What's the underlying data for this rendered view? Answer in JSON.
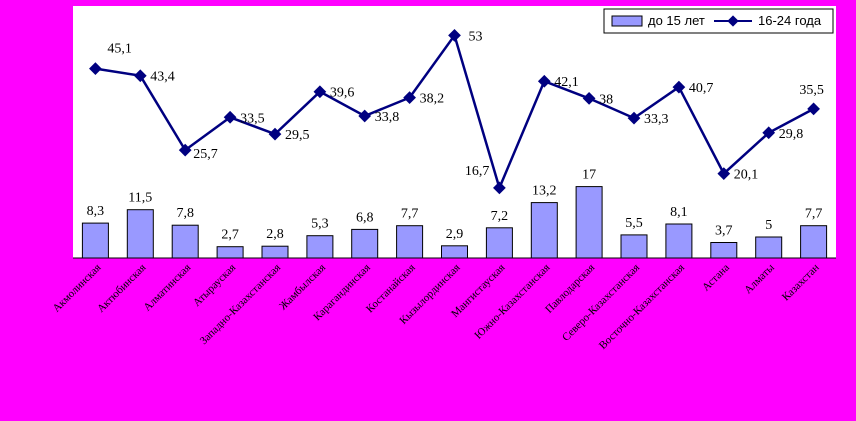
{
  "colors": {
    "background": "#ff00ff",
    "plot_area": "#ffffff",
    "bar_fill": "#9999ff",
    "bar_stroke": "#000000",
    "line": "#000080",
    "marker": "#000080"
  },
  "chart_data": {
    "type": "bar",
    "title": "",
    "xlabel": "",
    "ylabel": "",
    "ylim": [
      0,
      60
    ],
    "grid": false,
    "legend_position": "top-right",
    "categories": [
      "Акмолинская",
      "Актюбинская",
      "Алматинская",
      "Атырауская",
      "Западно-Казахстанская",
      "Жамбылская",
      "Карагандинская",
      "Костанайская",
      "Кызылординская",
      "Мангистауская",
      "Южно-Казахстанская",
      "Павлодарская",
      "Северо-Казахстанская",
      "Восточно-Казахстанская",
      "Астана",
      "Алматы",
      "Казахстан"
    ],
    "series": [
      {
        "name": "до 15 лет",
        "type": "bar",
        "values": [
          8.3,
          11.5,
          7.8,
          2.7,
          2.8,
          5.3,
          6.8,
          7.7,
          2.9,
          7.2,
          13.2,
          17,
          5.5,
          8.1,
          3.7,
          5,
          7.7
        ],
        "labels": [
          "8,3",
          "11,5",
          "7,8",
          "2,7",
          "2,8",
          "5,3",
          "6,8",
          "7,7",
          "2,9",
          "7,2",
          "13,2",
          "17",
          "5,5",
          "8,1",
          "3,7",
          "5",
          "7,7"
        ]
      },
      {
        "name": "16-24 года",
        "type": "line",
        "values": [
          45.1,
          43.4,
          25.7,
          33.5,
          29.5,
          39.6,
          33.8,
          38.2,
          53,
          16.7,
          42.1,
          38,
          33.3,
          40.7,
          20.1,
          29.8,
          35.5
        ],
        "labels": [
          "45,1",
          "43,4",
          "25,7",
          "33,5",
          "29,5",
          "39,6",
          "33,8",
          "38,2",
          "53",
          "16,7",
          "42,1",
          "38",
          "33,3",
          "40,7",
          "20,1",
          "29,8",
          "35,5"
        ]
      }
    ]
  }
}
